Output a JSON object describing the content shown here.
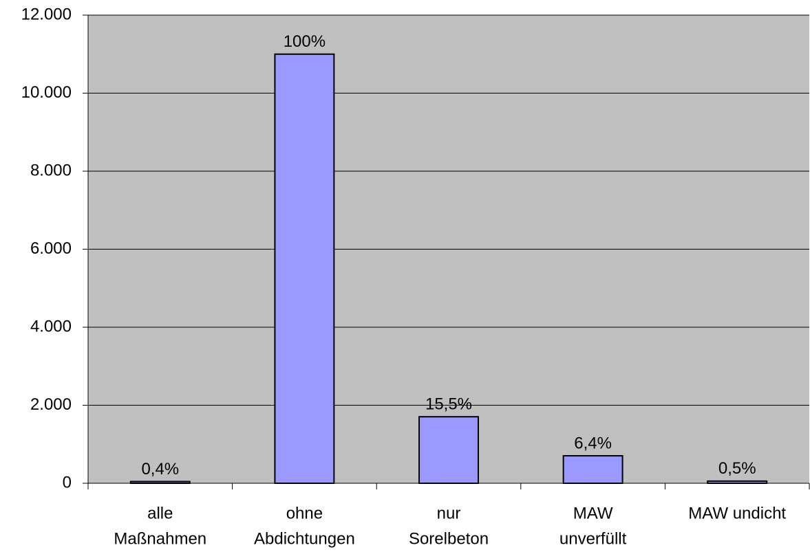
{
  "chart_data": {
    "type": "bar",
    "categories": [
      [
        "alle",
        "Maßnahmen"
      ],
      [
        "ohne",
        "Abdichtungen"
      ],
      [
        "nur",
        "Sorelbeton"
      ],
      [
        "MAW",
        "unverfüllt"
      ],
      [
        "MAW undicht"
      ]
    ],
    "values": [
      44,
      11000,
      1705,
      704,
      55
    ],
    "value_labels": [
      "0,4%",
      "100%",
      "15,5%",
      "6,4%",
      "0,5%"
    ],
    "color": "#9999ff",
    "ylim": [
      0,
      12000
    ],
    "yticks": [
      0,
      {
        "value": 2000,
        "label": "2.000"
      },
      {
        "value": 4000,
        "label": "4.000"
      },
      {
        "value": 6000,
        "label": "6.000"
      },
      {
        "value": 8000,
        "label": "8.000"
      },
      {
        "value": 10000,
        "label": "10.000"
      },
      {
        "value": 12000,
        "label": "12.000"
      }
    ],
    "grid": true
  }
}
